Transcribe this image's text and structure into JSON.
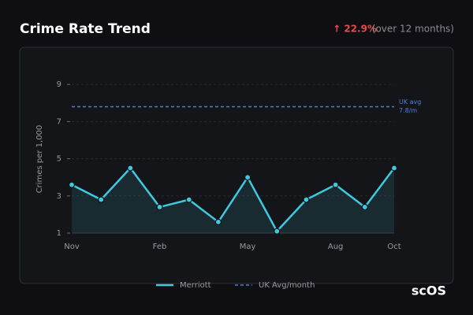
{
  "header": {
    "title": "Crime Rate Trend",
    "change": "↑ 22.9%",
    "period": "(over 12 months)"
  },
  "chart_data": {
    "type": "line",
    "y_label": "Crimes per 1,000",
    "categories": [
      "Nov",
      null,
      null,
      "Feb",
      null,
      null,
      "May",
      null,
      null,
      "Aug",
      null,
      "Oct"
    ],
    "series": [
      {
        "name": "Merriott",
        "color": "#3ec9de",
        "values": [
          3.6,
          2.8,
          4.5,
          2.4,
          2.8,
          1.6,
          4.0,
          1.1,
          2.8,
          3.6,
          2.4,
          4.5
        ]
      }
    ],
    "reference": {
      "name": "UK Avg/month",
      "value": 7.8,
      "color": "#4a7fe0",
      "label": "UK avg",
      "value_label": "7.8/m"
    },
    "ylim": [
      1,
      9.5
    ],
    "yticks": [
      1,
      3,
      5,
      7,
      9
    ],
    "grid": true
  },
  "logo": "scOS"
}
